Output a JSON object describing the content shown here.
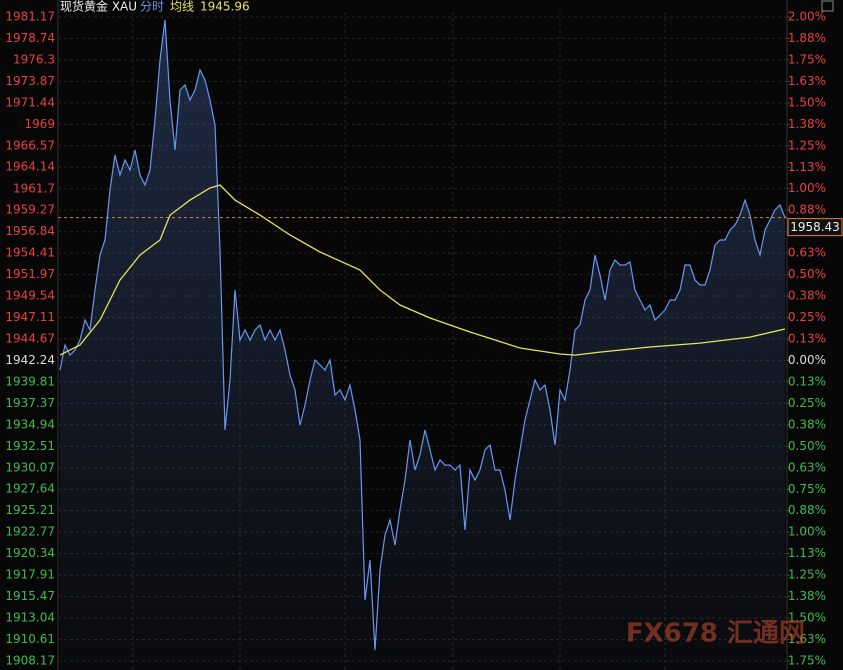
{
  "chart_data": {
    "type": "line",
    "title": "现货黄金 XAU",
    "ylim": [
      1908.17,
      1981.17
    ],
    "yticks": [
      1981.17,
      1978.74,
      1976.3,
      1973.87,
      1971.44,
      1969.0,
      1966.57,
      1964.14,
      1961.7,
      1959.27,
      1956.84,
      1954.41,
      1951.97,
      1949.54,
      1947.11,
      1944.67,
      1942.24,
      1939.81,
      1937.37,
      1934.94,
      1932.51,
      1930.07,
      1927.64,
      1925.21,
      1922.77,
      1920.34,
      1917.91,
      1915.47,
      1913.04,
      1910.61,
      1908.17
    ],
    "y2lim": [
      -1.75,
      2.0
    ],
    "y2ticks": [
      {
        "value": 2.0,
        "label": "2.00%"
      },
      {
        "value": 1.875,
        "label": "1.88%"
      },
      {
        "value": 1.75,
        "label": "1.75%"
      },
      {
        "value": 1.625,
        "label": "1.63%"
      },
      {
        "value": 1.5,
        "label": "1.50%"
      },
      {
        "value": 1.375,
        "label": "1.38%"
      },
      {
        "value": 1.25,
        "label": "1.25%"
      },
      {
        "value": 1.125,
        "label": "1.13%"
      },
      {
        "value": 1.0,
        "label": "1.00%"
      },
      {
        "value": 0.875,
        "label": "0.88%"
      },
      {
        "value": 0.75,
        "label": "0.75%"
      },
      {
        "value": 0.625,
        "label": "0.63%"
      },
      {
        "value": 0.5,
        "label": "0.50%"
      },
      {
        "value": 0.375,
        "label": "0.38%"
      },
      {
        "value": 0.25,
        "label": "0.25%"
      },
      {
        "value": 0.125,
        "label": "0.13%"
      },
      {
        "value": 0,
        "label": "0.00%"
      },
      {
        "value": -0.125,
        "label": "0.13%"
      },
      {
        "value": -0.25,
        "label": "0.25%"
      },
      {
        "value": -0.375,
        "label": "0.38%"
      },
      {
        "value": -0.5,
        "label": "0.50%"
      },
      {
        "value": -0.625,
        "label": "0.63%"
      },
      {
        "value": -0.75,
        "label": "0.75%"
      },
      {
        "value": -0.875,
        "label": "0.88%"
      },
      {
        "value": -1.0,
        "label": "1.00%"
      },
      {
        "value": -1.125,
        "label": "1.13%"
      },
      {
        "value": -1.25,
        "label": "1.25%"
      },
      {
        "value": -1.375,
        "label": "1.38%"
      },
      {
        "value": -1.5,
        "label": "1.50%"
      },
      {
        "value": -1.625,
        "label": "1.63%"
      },
      {
        "value": -1.75,
        "label": "1.75%"
      }
    ],
    "reference_price": 1942.24,
    "up_color": "#e8413c",
    "down_color": "#3dbd4f",
    "flat_color": "#dddddd",
    "grid": true,
    "xlim": [
      0,
      145
    ],
    "last_price": 1958.43,
    "watermark": "FX678 汇通网",
    "series": [
      {
        "name": "分时",
        "color": "#6a96f0",
        "values": [
          1941.15,
          1943.99,
          1942.85,
          1943.42,
          1944.55,
          1946.82,
          1945.69,
          1950.22,
          1954.19,
          1955.89,
          1961.56,
          1965.53,
          1963.26,
          1964.96,
          1963.83,
          1966.09,
          1963.26,
          1962.13,
          1963.83,
          1969.49,
          1976.3,
          1980.83,
          1971.76,
          1966.09,
          1972.89,
          1973.46,
          1971.76,
          1972.89,
          1975.16,
          1974.03,
          1971.76,
          1968.93,
          1954.76,
          1934.35,
          1940.02,
          1950.22,
          1944.55,
          1945.69,
          1944.55,
          1945.69,
          1946.26,
          1944.55,
          1945.69,
          1944.55,
          1945.69,
          1943.42,
          1940.59,
          1938.89,
          1934.92,
          1937.19,
          1940.02,
          1942.29,
          1941.72,
          1941.15,
          1942.29,
          1938.32,
          1938.89,
          1937.75,
          1939.45,
          1936.62,
          1933.22,
          1915.08,
          1919.62,
          1909.41,
          1918.48,
          1922.45,
          1924.15,
          1921.32,
          1925.28,
          1928.68,
          1933.22,
          1929.82,
          1931.52,
          1934.35,
          1932.09,
          1929.82,
          1930.95,
          1930.38,
          1930.38,
          1929.82,
          1930.38,
          1923.02,
          1929.82,
          1928.68,
          1929.82,
          1932.09,
          1932.65,
          1929.82,
          1929.82,
          1927.55,
          1924.15,
          1928.68,
          1932.09,
          1935.49,
          1937.75,
          1940.02,
          1938.89,
          1939.45,
          1936.62,
          1932.65,
          1938.89,
          1937.75,
          1941.15,
          1945.69,
          1946.26,
          1949.09,
          1950.22,
          1954.19,
          1951.92,
          1949.09,
          1952.49,
          1953.62,
          1953.06,
          1953.06,
          1953.4,
          1950.22,
          1949.09,
          1947.96,
          1948.52,
          1946.82,
          1947.39,
          1947.96,
          1949.09,
          1949.09,
          1950.22,
          1953.06,
          1953.06,
          1951.36,
          1950.79,
          1950.79,
          1952.49,
          1955.32,
          1955.89,
          1955.89,
          1957.02,
          1957.59,
          1958.72,
          1960.42,
          1958.72,
          1955.89,
          1954.19,
          1957.02,
          1958.16,
          1959.29,
          1959.86,
          1958.43
        ]
      },
      {
        "name": "均线",
        "color": "#e6e35a",
        "legend_value": 1945.96,
        "x": [
          0,
          4,
          8,
          12,
          16,
          20,
          22,
          26,
          30,
          32,
          35,
          40,
          46,
          52,
          60,
          64,
          68,
          74,
          82,
          92,
          100,
          103,
          108,
          118,
          128,
          138,
          145
        ],
        "values": [
          1942.85,
          1943.99,
          1946.82,
          1951.36,
          1954.19,
          1955.89,
          1958.72,
          1960.42,
          1961.79,
          1962.13,
          1960.42,
          1958.72,
          1956.46,
          1954.53,
          1952.49,
          1950.22,
          1948.52,
          1947.05,
          1945.46,
          1943.65,
          1942.97,
          1942.85,
          1943.19,
          1943.76,
          1944.21,
          1944.89,
          1945.8
        ]
      }
    ]
  }
}
